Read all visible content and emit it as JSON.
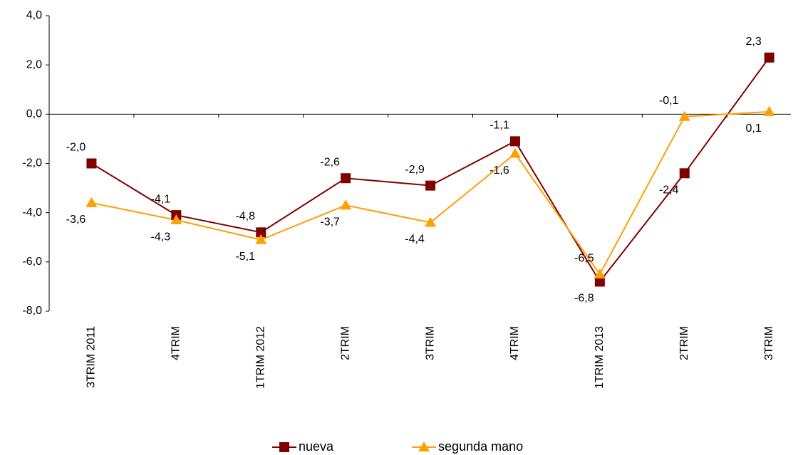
{
  "chart_data": {
    "type": "line",
    "categories": [
      "3TRIM 2011",
      "4TRIM",
      "1TRIM 2012",
      "2TRIM",
      "3TRIM",
      "4TRIM",
      "1TRIM 2013",
      "2TRIM",
      "3TRIM"
    ],
    "series": [
      {
        "name": "nueva",
        "color": "#800000",
        "marker": "square",
        "values": [
          -2.0,
          -4.1,
          -4.8,
          -2.6,
          -2.9,
          -1.1,
          -6.8,
          -2.4,
          2.3
        ],
        "value_labels": [
          "-2,0",
          "-4,1",
          "-4,8",
          "-2,6",
          "-2,9",
          "-1,1",
          "-6,8",
          "-2,4",
          "2,3"
        ]
      },
      {
        "name": "segunda mano",
        "color": "#FFA000",
        "marker": "triangle",
        "values": [
          -3.6,
          -4.3,
          -5.1,
          -3.7,
          -4.4,
          -1.6,
          -6.5,
          -0.1,
          0.1
        ],
        "value_labels": [
          "-3,6",
          "-4,3",
          "-5,1",
          "-3,7",
          "-4,4",
          "-1,6",
          "-6,5",
          "-0,1",
          "0,1"
        ]
      }
    ],
    "ylim": [
      -8.0,
      4.0
    ],
    "yticks": [
      {
        "value": -8,
        "label": "-8,0"
      },
      {
        "value": -6,
        "label": "-6,0"
      },
      {
        "value": -4,
        "label": "-4,0"
      },
      {
        "value": -2,
        "label": "-2,0"
      },
      {
        "value": 0,
        "label": "0,0"
      },
      {
        "value": 2,
        "label": "2,0"
      },
      {
        "value": 4,
        "label": "4,0"
      }
    ],
    "grid": false,
    "legend": "bottom"
  }
}
